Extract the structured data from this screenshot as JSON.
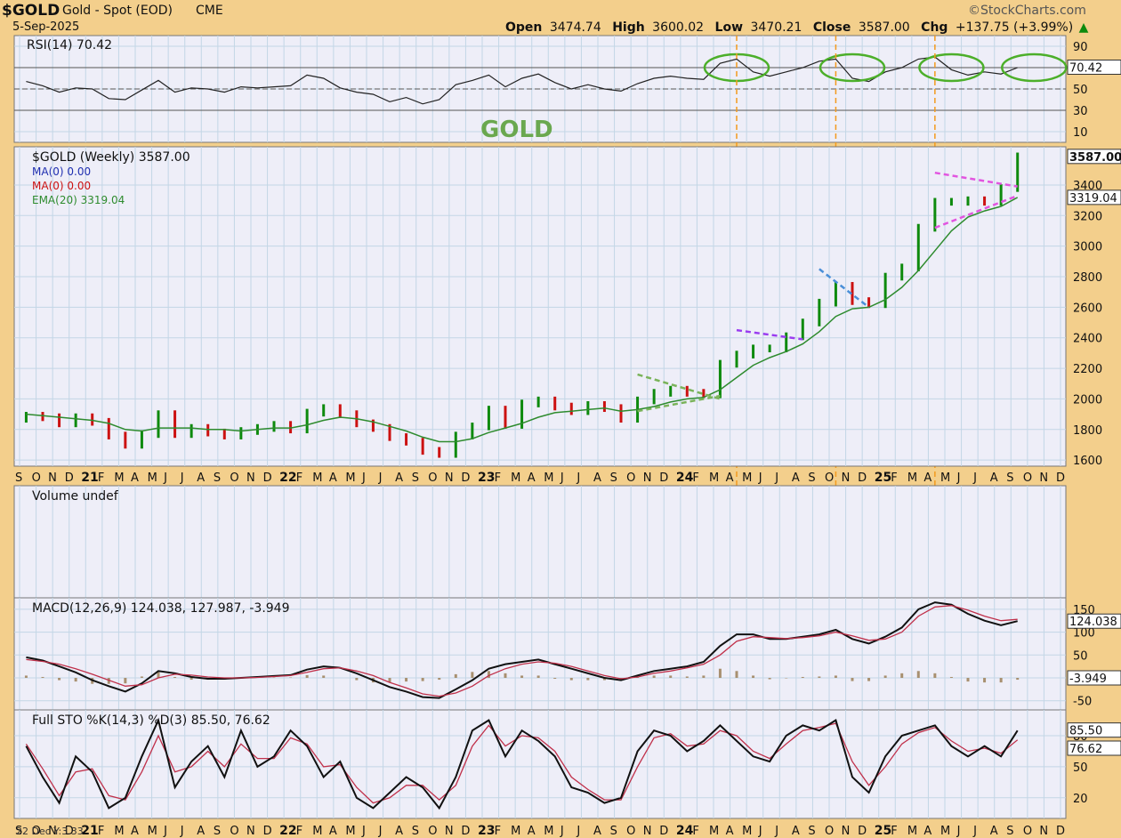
{
  "header": {
    "symbol": "$GOLD",
    "name": "Gold - Spot (EOD)",
    "exchange": "CME",
    "date": "5-Sep-2025",
    "brand": "©StockCharts.com",
    "ohlc": [
      {
        "label": "Open",
        "value": "3474.74"
      },
      {
        "label": "High",
        "value": "3600.02"
      },
      {
        "label": "Low",
        "value": "3470.21"
      },
      {
        "label": "Close",
        "value": "3587.00"
      },
      {
        "label": "Chg",
        "value": "+137.75 (+3.99%)"
      }
    ],
    "arrow": "▲"
  },
  "overlay_title": "GOLD",
  "footer_text": "22 Dec Y:3.33",
  "colors": {
    "page_bg": "#f3cf8c",
    "panel_bg": "#eeeef8",
    "grid": "#c3d6e6",
    "up_bar": "#0d8a0d",
    "down_bar": "#cc1111",
    "ema": "#2e8b2e",
    "macd": "#111111",
    "signal": "#c0304a",
    "histogram": "#a89070",
    "marker_orange": "#f39a1e",
    "circle_green": "#4caf2a",
    "triangle_pink": "#e255e0",
    "trend_purple": "#9a3cf0",
    "trend_blue": "#4a8fd8",
    "trend_green": "#7ab35a",
    "title_green": "#6aa84f"
  },
  "chart_data": [
    {
      "type": "line",
      "name": "RSI panel",
      "legend": "RSI(14) 70.42",
      "yticks": [
        "90",
        "70",
        "50",
        "30",
        "10"
      ],
      "ylim": [
        0,
        100
      ],
      "levels": [
        70,
        50,
        30
      ],
      "last_value_label": "70.42",
      "x": [
        "2020-09",
        "2020-10",
        "2020-11",
        "2020-12",
        "2021-01",
        "2021-02",
        "2021-03",
        "2021-04",
        "2021-05",
        "2021-06",
        "2021-07",
        "2021-08",
        "2021-09",
        "2021-10",
        "2021-11",
        "2021-12",
        "2022-01",
        "2022-02",
        "2022-03",
        "2022-04",
        "2022-05",
        "2022-06",
        "2022-07",
        "2022-08",
        "2022-09",
        "2022-10",
        "2022-11",
        "2022-12",
        "2023-01",
        "2023-02",
        "2023-03",
        "2023-04",
        "2023-05",
        "2023-06",
        "2023-07",
        "2023-08",
        "2023-09",
        "2023-10",
        "2023-11",
        "2023-12",
        "2024-01",
        "2024-02",
        "2024-03",
        "2024-04",
        "2024-05",
        "2024-06",
        "2024-07",
        "2024-08",
        "2024-09",
        "2024-10",
        "2024-11",
        "2024-12",
        "2025-01",
        "2025-02",
        "2025-03",
        "2025-04",
        "2025-05",
        "2025-06",
        "2025-07",
        "2025-08",
        "2025-09"
      ],
      "values": [
        57,
        53,
        47,
        51,
        50,
        41,
        40,
        49,
        58,
        47,
        51,
        50,
        47,
        52,
        51,
        52,
        53,
        63,
        60,
        51,
        47,
        45,
        38,
        42,
        36,
        40,
        54,
        58,
        63,
        52,
        60,
        64,
        56,
        50,
        54,
        50,
        48,
        55,
        60,
        62,
        60,
        59,
        74,
        78,
        66,
        62,
        66,
        70,
        76,
        78,
        60,
        57,
        66,
        70,
        78,
        80,
        68,
        63,
        66,
        64,
        70
      ]
    },
    {
      "type": "line",
      "name": "Price panel",
      "legend": [
        {
          "text": "$GOLD (Weekly) 3587.00",
          "color": "#111111"
        },
        {
          "text": "MA(0) 0.00",
          "color": "#1f2fb0"
        },
        {
          "text": "MA(0) 0.00",
          "color": "#cc1111"
        },
        {
          "text": "EMA(20) 3319.04",
          "color": "#2e8b2e"
        }
      ],
      "yticks": [
        "3400",
        "3200",
        "3000",
        "2800",
        "2600",
        "2400",
        "2200",
        "2000",
        "1800",
        "1600"
      ],
      "ylim": [
        1560,
        3650
      ],
      "last_price_label": "3587.00",
      "ema_label": "3319.04",
      "x": [
        "2020-09",
        "2020-10",
        "2020-11",
        "2020-12",
        "2021-01",
        "2021-02",
        "2021-03",
        "2021-04",
        "2021-05",
        "2021-06",
        "2021-07",
        "2021-08",
        "2021-09",
        "2021-10",
        "2021-11",
        "2021-12",
        "2022-01",
        "2022-02",
        "2022-03",
        "2022-04",
        "2022-05",
        "2022-06",
        "2022-07",
        "2022-08",
        "2022-09",
        "2022-10",
        "2022-11",
        "2022-12",
        "2023-01",
        "2023-02",
        "2023-03",
        "2023-04",
        "2023-05",
        "2023-06",
        "2023-07",
        "2023-08",
        "2023-09",
        "2023-10",
        "2023-11",
        "2023-12",
        "2024-01",
        "2024-02",
        "2024-03",
        "2024-04",
        "2024-05",
        "2024-06",
        "2024-07",
        "2024-08",
        "2024-09",
        "2024-10",
        "2024-11",
        "2024-12",
        "2025-01",
        "2025-02",
        "2025-03",
        "2025-04",
        "2025-05",
        "2025-06",
        "2025-07",
        "2025-08",
        "2025-09"
      ],
      "close": [
        1890,
        1880,
        1840,
        1880,
        1850,
        1760,
        1700,
        1770,
        1900,
        1770,
        1810,
        1780,
        1760,
        1790,
        1810,
        1830,
        1800,
        1910,
        1940,
        1900,
        1840,
        1810,
        1750,
        1720,
        1660,
        1640,
        1760,
        1820,
        1930,
        1830,
        1970,
        1990,
        1950,
        1920,
        1960,
        1940,
        1870,
        1990,
        2040,
        2060,
        2040,
        2030,
        2230,
        2290,
        2330,
        2330,
        2410,
        2500,
        2630,
        2740,
        2640,
        2620,
        2800,
        2860,
        3120,
        3290,
        3290,
        3300,
        3290,
        3380,
        3587
      ],
      "ema": [
        1900,
        1890,
        1880,
        1870,
        1860,
        1840,
        1800,
        1790,
        1810,
        1810,
        1810,
        1800,
        1800,
        1790,
        1800,
        1810,
        1810,
        1830,
        1860,
        1880,
        1870,
        1850,
        1820,
        1790,
        1750,
        1720,
        1720,
        1740,
        1780,
        1810,
        1840,
        1880,
        1910,
        1920,
        1930,
        1940,
        1920,
        1930,
        1950,
        1980,
        2000,
        2010,
        2060,
        2140,
        2220,
        2270,
        2310,
        2360,
        2440,
        2540,
        2590,
        2600,
        2650,
        2730,
        2840,
        2970,
        3100,
        3190,
        3230,
        3260,
        3319
      ]
    },
    {
      "type": "bar",
      "name": "Volume panel",
      "legend": "Volume undef"
    },
    {
      "type": "line",
      "name": "MACD panel",
      "legend": "MACD(12,26,9) 124.038, 127.987, -3.949",
      "yticks": [
        "150",
        "100",
        "50",
        "0",
        "-50"
      ],
      "ylim": [
        -70,
        175
      ],
      "macd_label": "124.038",
      "hist_label": "-3.949",
      "x": [
        "2020-09",
        "2020-10",
        "2020-11",
        "2020-12",
        "2021-01",
        "2021-02",
        "2021-03",
        "2021-04",
        "2021-05",
        "2021-06",
        "2021-07",
        "2021-08",
        "2021-09",
        "2021-10",
        "2021-11",
        "2021-12",
        "2022-01",
        "2022-02",
        "2022-03",
        "2022-04",
        "2022-05",
        "2022-06",
        "2022-07",
        "2022-08",
        "2022-09",
        "2022-10",
        "2022-11",
        "2022-12",
        "2023-01",
        "2023-02",
        "2023-03",
        "2023-04",
        "2023-05",
        "2023-06",
        "2023-07",
        "2023-08",
        "2023-09",
        "2023-10",
        "2023-11",
        "2023-12",
        "2024-01",
        "2024-02",
        "2024-03",
        "2024-04",
        "2024-05",
        "2024-06",
        "2024-07",
        "2024-08",
        "2024-09",
        "2024-10",
        "2024-11",
        "2024-12",
        "2025-01",
        "2025-02",
        "2025-03",
        "2025-04",
        "2025-05",
        "2025-06",
        "2025-07",
        "2025-08",
        "2025-09"
      ],
      "macd": [
        45,
        38,
        25,
        12,
        -5,
        -18,
        -30,
        -12,
        15,
        10,
        2,
        -2,
        -2,
        0,
        2,
        4,
        6,
        18,
        25,
        22,
        10,
        -5,
        -20,
        -30,
        -42,
        -44,
        -25,
        -5,
        20,
        30,
        35,
        40,
        30,
        20,
        10,
        0,
        -5,
        5,
        15,
        20,
        25,
        35,
        70,
        95,
        95,
        85,
        85,
        90,
        95,
        105,
        85,
        75,
        90,
        110,
        150,
        165,
        160,
        140,
        125,
        115,
        124
      ],
      "signal": [
        40,
        36,
        30,
        20,
        8,
        -5,
        -18,
        -15,
        0,
        8,
        6,
        2,
        0,
        0,
        1,
        3,
        5,
        12,
        20,
        22,
        15,
        5,
        -10,
        -22,
        -35,
        -40,
        -33,
        -18,
        5,
        20,
        30,
        35,
        32,
        25,
        15,
        5,
        -2,
        2,
        10,
        15,
        22,
        30,
        50,
        80,
        90,
        88,
        86,
        88,
        92,
        100,
        92,
        82,
        85,
        100,
        135,
        155,
        158,
        148,
        135,
        125,
        128
      ]
    },
    {
      "type": "line",
      "name": "Full STO panel",
      "legend": "Full STO %K(14,3) %D(3) 85.50, 76.62",
      "yticks": [
        "80",
        "50",
        "20"
      ],
      "ylim": [
        0,
        105
      ],
      "k_label": "85.50",
      "d_label": "76.62",
      "x": [
        "2020-09",
        "2020-10",
        "2020-11",
        "2020-12",
        "2021-01",
        "2021-02",
        "2021-03",
        "2021-04",
        "2021-05",
        "2021-06",
        "2021-07",
        "2021-08",
        "2021-09",
        "2021-10",
        "2021-11",
        "2021-12",
        "2022-01",
        "2022-02",
        "2022-03",
        "2022-04",
        "2022-05",
        "2022-06",
        "2022-07",
        "2022-08",
        "2022-09",
        "2022-10",
        "2022-11",
        "2022-12",
        "2023-01",
        "2023-02",
        "2023-03",
        "2023-04",
        "2023-05",
        "2023-06",
        "2023-07",
        "2023-08",
        "2023-09",
        "2023-10",
        "2023-11",
        "2023-12",
        "2024-01",
        "2024-02",
        "2024-03",
        "2024-04",
        "2024-05",
        "2024-06",
        "2024-07",
        "2024-08",
        "2024-09",
        "2024-10",
        "2024-11",
        "2024-12",
        "2025-01",
        "2025-02",
        "2025-03",
        "2025-04",
        "2025-05",
        "2025-06",
        "2025-07",
        "2025-08",
        "2025-09"
      ],
      "k": [
        70,
        40,
        15,
        60,
        45,
        10,
        20,
        60,
        95,
        30,
        55,
        70,
        40,
        85,
        50,
        60,
        85,
        70,
        40,
        55,
        20,
        10,
        25,
        40,
        30,
        10,
        40,
        85,
        95,
        60,
        85,
        75,
        60,
        30,
        25,
        15,
        20,
        65,
        85,
        80,
        65,
        75,
        90,
        75,
        60,
        55,
        80,
        90,
        85,
        95,
        40,
        25,
        60,
        80,
        85,
        90,
        70,
        60,
        70,
        60,
        85
      ],
      "d": [
        72,
        48,
        22,
        45,
        48,
        22,
        18,
        45,
        80,
        45,
        50,
        65,
        50,
        72,
        58,
        58,
        78,
        72,
        50,
        52,
        30,
        15,
        20,
        32,
        32,
        18,
        32,
        70,
        90,
        70,
        80,
        78,
        65,
        40,
        28,
        18,
        18,
        50,
        78,
        82,
        70,
        72,
        85,
        80,
        65,
        58,
        72,
        85,
        88,
        92,
        55,
        32,
        50,
        72,
        83,
        88,
        75,
        65,
        68,
        63,
        76
      ]
    }
  ]
}
